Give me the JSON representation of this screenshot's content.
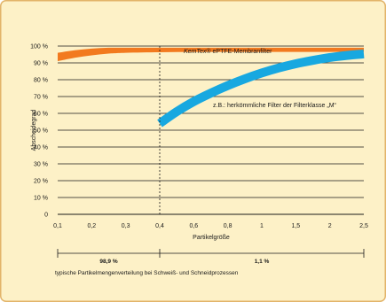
{
  "colors": {
    "background": "#fdf1c7",
    "border": "#e2b46a",
    "grid": "#1a1a1a",
    "kemtex_band": "#f27a1f",
    "conventional_band": "#18a8e0"
  },
  "chart_data": {
    "type": "area",
    "title": "",
    "xlabel": "Partikelgröße",
    "ylabel": "Abscheidegrad",
    "categories": [
      "0,1",
      "0,2",
      "0,3",
      "0,4",
      "0,6",
      "0,8",
      "1",
      "1,5",
      "2",
      "2,5"
    ],
    "y_ticks": [
      "0",
      "10 %",
      "20 %",
      "30 %",
      "40 %",
      "50 %",
      "60 %",
      "70 %",
      "80 %",
      "90 %",
      "100 %"
    ],
    "ylim": [
      0,
      100
    ],
    "grid": true,
    "series": [
      {
        "name": "KemTex® ePTFE-Membranfilter",
        "label_italic_part": "KemTex",
        "label_rest": "® ePTFE-Membranfilter",
        "x_index": [
          0,
          0.5,
          1,
          1.5,
          2,
          3,
          4,
          5,
          6,
          7,
          8,
          9
        ],
        "y_low": [
          91,
          93,
          94.5,
          95.5,
          96,
          96.3,
          96.5,
          96.5,
          96.5,
          96.5,
          96.5,
          96.5
        ],
        "y_high": [
          96,
          97.5,
          98.5,
          99,
          99,
          99,
          99,
          99,
          99,
          99,
          99,
          99
        ]
      },
      {
        "name": "z.B.: herkömmliche Filter der Filterklasse „M“",
        "x_index": [
          3,
          3.5,
          4,
          4.5,
          5,
          5.5,
          6,
          6.5,
          7,
          7.5,
          8,
          8.5,
          9
        ],
        "y_mid": [
          54,
          61,
          67,
          72,
          76.5,
          80.5,
          84,
          87,
          89.5,
          91.5,
          93.2,
          94.4,
          95.3
        ]
      }
    ],
    "divider_category": "0,4",
    "distribution": {
      "caption": "typische Partikelmengenverteilung bei Schweiß- und Schneidprozessen",
      "left_value": "98,9 %",
      "right_value": "1,1 %"
    }
  }
}
